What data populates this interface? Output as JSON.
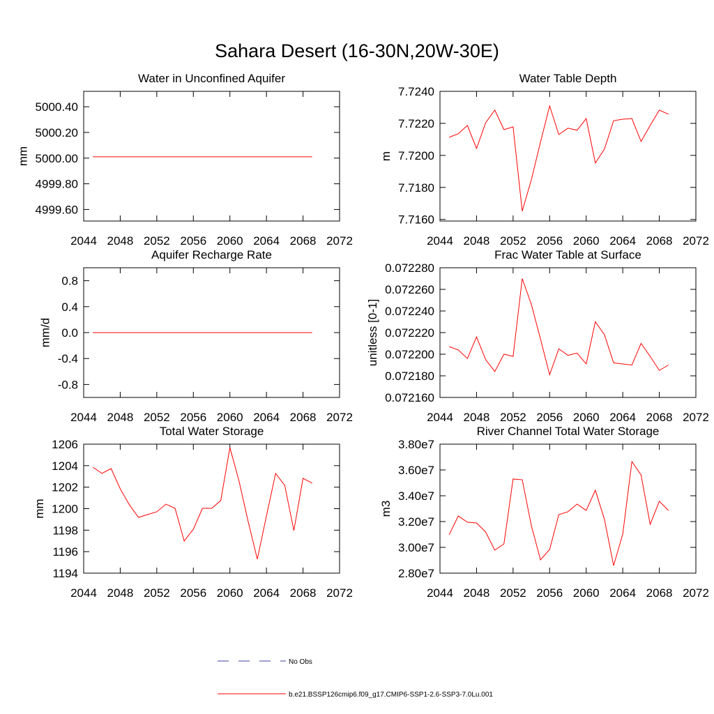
{
  "title": "Sahara Desert (16-30N,20W-30E)",
  "legend": [
    {
      "name": "No Obs",
      "color": "#4040a0",
      "dashed": true
    },
    {
      "name": "b.e21.BSSP126cmip6.f09_g17.CMIP6-SSP1-2.6-SSP3-7.0Lu.001",
      "color": "#ff0000",
      "dashed": false
    }
  ],
  "chart_data": [
    {
      "type": "line",
      "title": "Water in Unconfined Aquifer",
      "ylabel": "mm",
      "x": [
        2045,
        2046,
        2047,
        2048,
        2049,
        2050,
        2051,
        2052,
        2053,
        2054,
        2055,
        2056,
        2057,
        2058,
        2059,
        2060,
        2061,
        2062,
        2063,
        2064,
        2065,
        2066,
        2067,
        2068,
        2069
      ],
      "series": [
        {
          "color": "#ff0000",
          "values": [
            5000.01,
            5000.01,
            5000.01,
            5000.01,
            5000.01,
            5000.01,
            5000.01,
            5000.01,
            5000.01,
            5000.01,
            5000.01,
            5000.01,
            5000.01,
            5000.01,
            5000.01,
            5000.01,
            5000.01,
            5000.01,
            5000.01,
            5000.01,
            5000.01,
            5000.01,
            5000.01,
            5000.01,
            5000.01
          ]
        }
      ],
      "xlim": [
        2044,
        2072
      ],
      "xticks": [
        2044,
        2048,
        2052,
        2056,
        2060,
        2064,
        2068,
        2072
      ],
      "ylim": [
        4999.51,
        5000.52
      ],
      "yticks": [
        {
          "value": 4999.6,
          "label": "4999.60"
        },
        {
          "value": 4999.8,
          "label": "4999.80"
        },
        {
          "value": 5000,
          "label": "5000.00"
        },
        {
          "value": 5000.2,
          "label": "5000.20"
        },
        {
          "value": 5000.4,
          "label": "5000.40"
        }
      ]
    },
    {
      "type": "line",
      "title": "Water Table Depth",
      "ylabel": "m",
      "x": [
        2045,
        2046,
        2047,
        2048,
        2049,
        2050,
        2051,
        2052,
        2053,
        2054,
        2055,
        2056,
        2057,
        2058,
        2059,
        2060,
        2061,
        2062,
        2063,
        2064,
        2065,
        2066,
        2067,
        2068,
        2069
      ],
      "series": [
        {
          "color": "#ff0000",
          "values": [
            7.72113,
            7.72135,
            7.72187,
            7.72043,
            7.72204,
            7.72283,
            7.72161,
            7.72178,
            7.71652,
            7.71848,
            7.72083,
            7.72309,
            7.7213,
            7.7217,
            7.72157,
            7.7223,
            7.71952,
            7.7204,
            7.72217,
            7.72226,
            7.7223,
            7.72087,
            7.72187,
            7.72283,
            7.72257
          ]
        }
      ],
      "xlim": [
        2044,
        2072
      ],
      "xticks": [
        2044,
        2048,
        2052,
        2056,
        2060,
        2064,
        2068,
        2072
      ],
      "ylim": [
        7.7159,
        7.724
      ],
      "yticks": [
        {
          "value": 7.716,
          "label": "7.7160"
        },
        {
          "value": 7.718,
          "label": "7.7180"
        },
        {
          "value": 7.72,
          "label": "7.7200"
        },
        {
          "value": 7.722,
          "label": "7.7220"
        },
        {
          "value": 7.724,
          "label": "7.7240"
        }
      ]
    },
    {
      "type": "line",
      "title": "Aquifer Recharge Rate",
      "ylabel": "mm/d",
      "x": [
        2045,
        2046,
        2047,
        2048,
        2049,
        2050,
        2051,
        2052,
        2053,
        2054,
        2055,
        2056,
        2057,
        2058,
        2059,
        2060,
        2061,
        2062,
        2063,
        2064,
        2065,
        2066,
        2067,
        2068,
        2069
      ],
      "series": [
        {
          "color": "#ff0000",
          "values": [
            0,
            0,
            0,
            0,
            0,
            0,
            0,
            0,
            0,
            0,
            0,
            0,
            0,
            0,
            0,
            0,
            0,
            0,
            0,
            0,
            0,
            0,
            0,
            0,
            0
          ]
        }
      ],
      "xlim": [
        2044,
        2072
      ],
      "xticks": [
        2044,
        2048,
        2052,
        2056,
        2060,
        2064,
        2068,
        2072
      ],
      "ylim": [
        -1,
        1
      ],
      "yticks": [
        -0.8,
        -0.4,
        {
          "value": 0,
          "label": "0.0"
        },
        0.4,
        0.8
      ]
    },
    {
      "type": "line",
      "title": "Frac Water Table at Surface",
      "ylabel": "unitless [0-1]",
      "x": [
        2045,
        2046,
        2047,
        2048,
        2049,
        2050,
        2051,
        2052,
        2053,
        2054,
        2055,
        2056,
        2057,
        2058,
        2059,
        2060,
        2061,
        2062,
        2063,
        2064,
        2065,
        2066,
        2067,
        2068,
        2069
      ],
      "series": [
        {
          "color": "#ff0000",
          "values": [
            0.072207,
            0.072204,
            0.072196,
            0.072216,
            0.072195,
            0.072184,
            0.0722,
            0.072198,
            0.07227,
            0.072246,
            0.072214,
            0.072181,
            0.072205,
            0.072199,
            0.072201,
            0.072191,
            0.07223,
            0.072218,
            0.072192,
            0.072191,
            0.07219,
            0.07221,
            0.072198,
            0.072185,
            0.07219
          ]
        }
      ],
      "xlim": [
        2044,
        2072
      ],
      "xticks": [
        2044,
        2048,
        2052,
        2056,
        2060,
        2064,
        2068,
        2072
      ],
      "ylim": [
        0.07216,
        0.07228
      ],
      "yticks": [
        {
          "value": 0.07216,
          "label": "0.072160"
        },
        {
          "value": 0.07218,
          "label": "0.072180"
        },
        {
          "value": 0.0722,
          "label": "0.072200"
        },
        {
          "value": 0.07222,
          "label": "0.072220"
        },
        {
          "value": 0.07224,
          "label": "0.072240"
        },
        {
          "value": 0.07226,
          "label": "0.072260"
        },
        {
          "value": 0.07228,
          "label": "0.072280"
        }
      ]
    },
    {
      "type": "line",
      "title": "Total Water Storage",
      "ylabel": "mm",
      "x": [
        2045,
        2046,
        2047,
        2048,
        2049,
        2050,
        2051,
        2052,
        2053,
        2054,
        2055,
        2056,
        2057,
        2058,
        2059,
        2060,
        2061,
        2062,
        2063,
        2064,
        2065,
        2066,
        2067,
        2068,
        2069
      ],
      "series": [
        {
          "color": "#ff0000",
          "values": [
            1203.86,
            1203.28,
            1203.73,
            1201.85,
            1200.36,
            1199.19,
            1199.45,
            1199.71,
            1200.42,
            1200.03,
            1196.99,
            1198.09,
            1200.03,
            1200.03,
            1200.75,
            1205.68,
            1202.56,
            1198.8,
            1195.3,
            1199.32,
            1203.28,
            1202.17,
            1197.96,
            1202.82,
            1202.37
          ]
        }
      ],
      "xlim": [
        2044,
        2072
      ],
      "xticks": [
        2044,
        2048,
        2052,
        2056,
        2060,
        2064,
        2068,
        2072
      ],
      "ylim": [
        1194,
        1206
      ],
      "yticks": [
        1194,
        1196,
        1198,
        1200,
        1202,
        1204,
        1206
      ]
    },
    {
      "type": "line",
      "title": "River Channel Total Water Storage",
      "ylabel": "m3",
      "x": [
        2045,
        2046,
        2047,
        2048,
        2049,
        2050,
        2051,
        2052,
        2053,
        2054,
        2055,
        2056,
        2057,
        2058,
        2059,
        2060,
        2061,
        2062,
        2063,
        2064,
        2065,
        2066,
        2067,
        2068,
        2069
      ],
      "series": [
        {
          "color": "#ff0000",
          "values": [
            30970000,
            32430000,
            31950000,
            31890000,
            31190000,
            29780000,
            30270000,
            35300000,
            35240000,
            31680000,
            29030000,
            29840000,
            32540000,
            32760000,
            33350000,
            32860000,
            34430000,
            32160000,
            28590000,
            31030000,
            36650000,
            35620000,
            31780000,
            33570000,
            32860000
          ]
        }
      ],
      "xlim": [
        2044,
        2072
      ],
      "xticks": [
        2044,
        2048,
        2052,
        2056,
        2060,
        2064,
        2068,
        2072
      ],
      "ylim": [
        28000000,
        38000000
      ],
      "yticks": [
        {
          "value": 28000000,
          "label": "2.80e7"
        },
        {
          "value": 30000000,
          "label": "3.00e7"
        },
        {
          "value": 32000000,
          "label": "3.20e7"
        },
        {
          "value": 34000000,
          "label": "3.40e7"
        },
        {
          "value": 36000000,
          "label": "3.60e7"
        },
        {
          "value": 38000000,
          "label": "3.80e7"
        }
      ]
    }
  ]
}
